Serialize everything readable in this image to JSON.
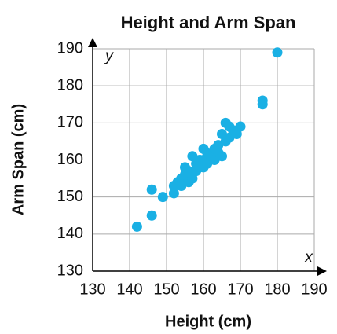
{
  "chart_data": {
    "type": "scatter",
    "title": "Height and Arm Span",
    "x_label": "Height (cm)",
    "y_label": "Arm Span (cm)",
    "x_axis_name": "x",
    "y_axis_name": "y",
    "color": "#1ab0e4",
    "grid": true,
    "xlim": [
      130,
      190
    ],
    "ylim": [
      130,
      190
    ],
    "xticks": [
      130,
      140,
      150,
      160,
      170,
      180,
      190
    ],
    "yticks": [
      130,
      140,
      150,
      160,
      170,
      180,
      190
    ],
    "x": [
      142,
      146,
      146,
      149,
      152,
      152,
      153,
      154,
      154,
      155,
      155,
      156,
      156,
      157,
      157,
      158,
      158,
      159,
      159,
      160,
      160,
      160,
      161,
      161,
      162,
      163,
      163,
      164,
      164,
      165,
      165,
      166,
      166,
      167,
      167,
      168,
      169,
      170,
      176,
      176,
      180
    ],
    "values": [
      142,
      145,
      152,
      150,
      151,
      153,
      154,
      155,
      153,
      156,
      158,
      154,
      157,
      155,
      161,
      157,
      159,
      158,
      160,
      158,
      160,
      163,
      162,
      159,
      161,
      163,
      160,
      162,
      164,
      161,
      167,
      165,
      170,
      166,
      169,
      168,
      167,
      169,
      175,
      176,
      189
    ]
  }
}
